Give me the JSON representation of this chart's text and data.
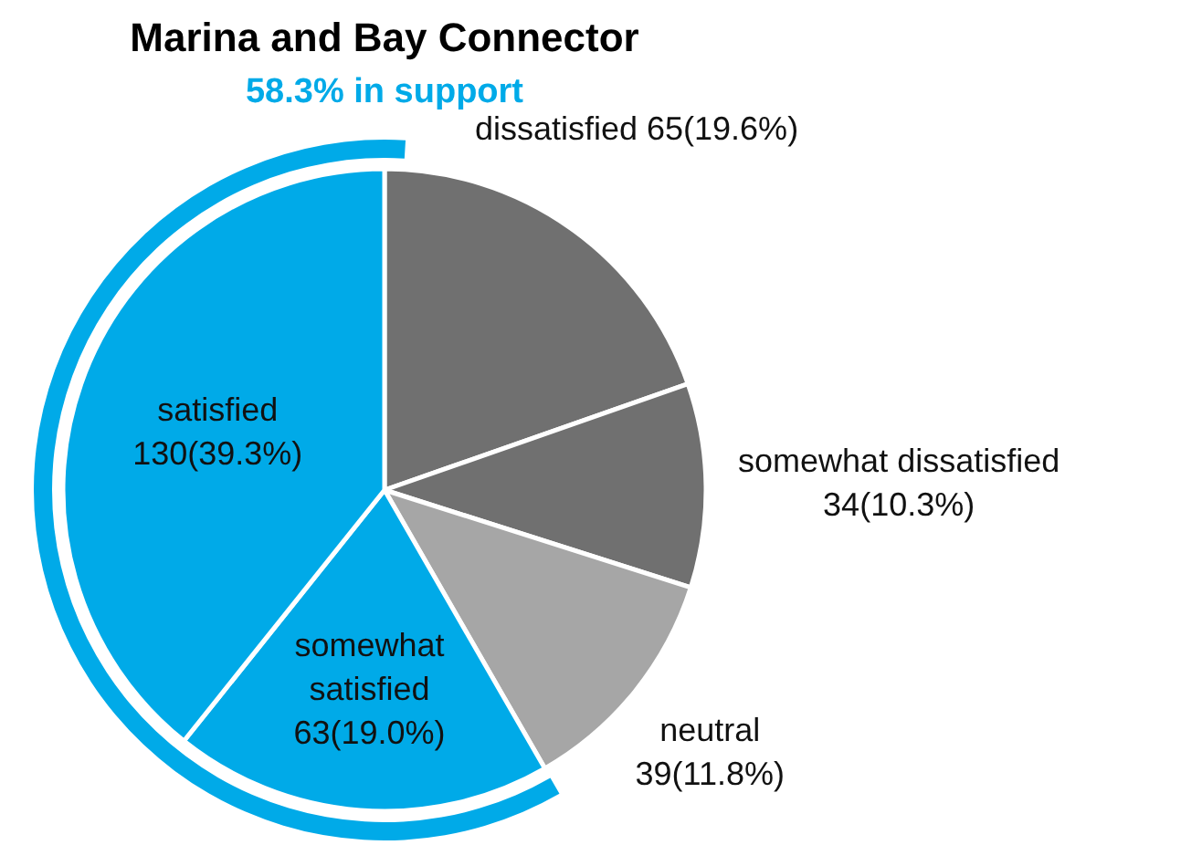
{
  "chart_data": {
    "type": "pie",
    "title": "Marina and Bay Connector",
    "subtitle": "58.3% in support",
    "categories": [
      "dissatisfied",
      "somewhat dissatisfied",
      "neutral",
      "somewhat satisfied",
      "satisfied"
    ],
    "values": [
      65,
      34,
      39,
      63,
      130
    ],
    "colors": [
      "#707070",
      "#707070",
      "#a6a6a6",
      "#00aae8",
      "#00aae8"
    ],
    "value_labels": [
      "65(19.6%)",
      "34(10.3%)",
      "39(11.8%)",
      "63(19.0%)",
      "130(39.3%)"
    ]
  }
}
